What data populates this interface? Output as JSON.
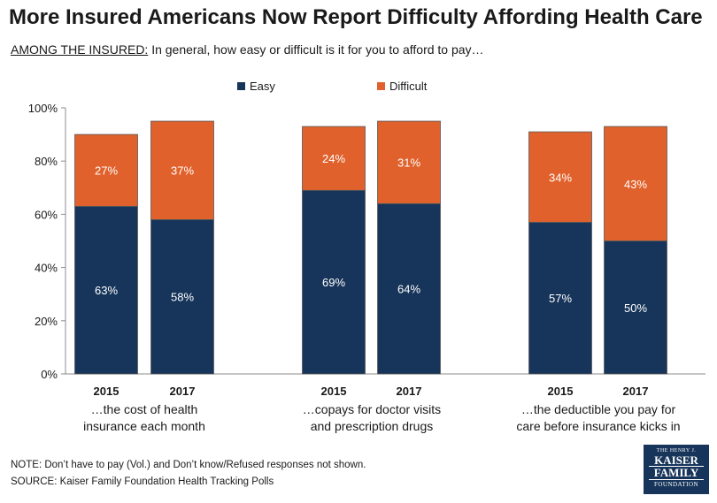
{
  "header": {
    "title": "More Insured Americans Now Report Difficulty Affording Health Care",
    "subtitle_lead": "AMONG THE INSURED:",
    "subtitle_rest": " In general, how easy or difficult is it for you to afford to pay…"
  },
  "notes": {
    "note": "NOTE: Don’t have to pay (Vol.) and Don’t know/Refused  responses not shown.",
    "source": "SOURCE: Kaiser Family Foundation  Health Tracking Polls"
  },
  "logo": {
    "line1": "THE HENRY J.",
    "line2": "KAISER",
    "line3": "FAMILY",
    "line4": "FOUNDATION"
  },
  "colors": {
    "easy": "#17355a",
    "difficult": "#e0612b"
  },
  "chart_data": {
    "type": "bar",
    "stacked": true,
    "ylim": [
      0,
      100
    ],
    "yticks": [
      "0%",
      "20%",
      "40%",
      "60%",
      "80%",
      "100%"
    ],
    "legend": [
      "Easy",
      "Difficult"
    ],
    "legend_position": "top-center",
    "grid": false,
    "groups": [
      {
        "label_lines": [
          "…the cost of health",
          "insurance each month"
        ],
        "bars": [
          {
            "year": "2015",
            "easy": 63,
            "difficult": 27
          },
          {
            "year": "2017",
            "easy": 58,
            "difficult": 37
          }
        ]
      },
      {
        "label_lines": [
          "…copays for doctor visits",
          "and prescription drugs"
        ],
        "bars": [
          {
            "year": "2015",
            "easy": 69,
            "difficult": 24
          },
          {
            "year": "2017",
            "easy": 64,
            "difficult": 31
          }
        ]
      },
      {
        "label_lines": [
          "…the deductible you pay for",
          "care before insurance kicks in"
        ],
        "bars": [
          {
            "year": "2015",
            "easy": 57,
            "difficult": 34
          },
          {
            "year": "2017",
            "easy": 50,
            "difficult": 43
          }
        ]
      }
    ]
  }
}
